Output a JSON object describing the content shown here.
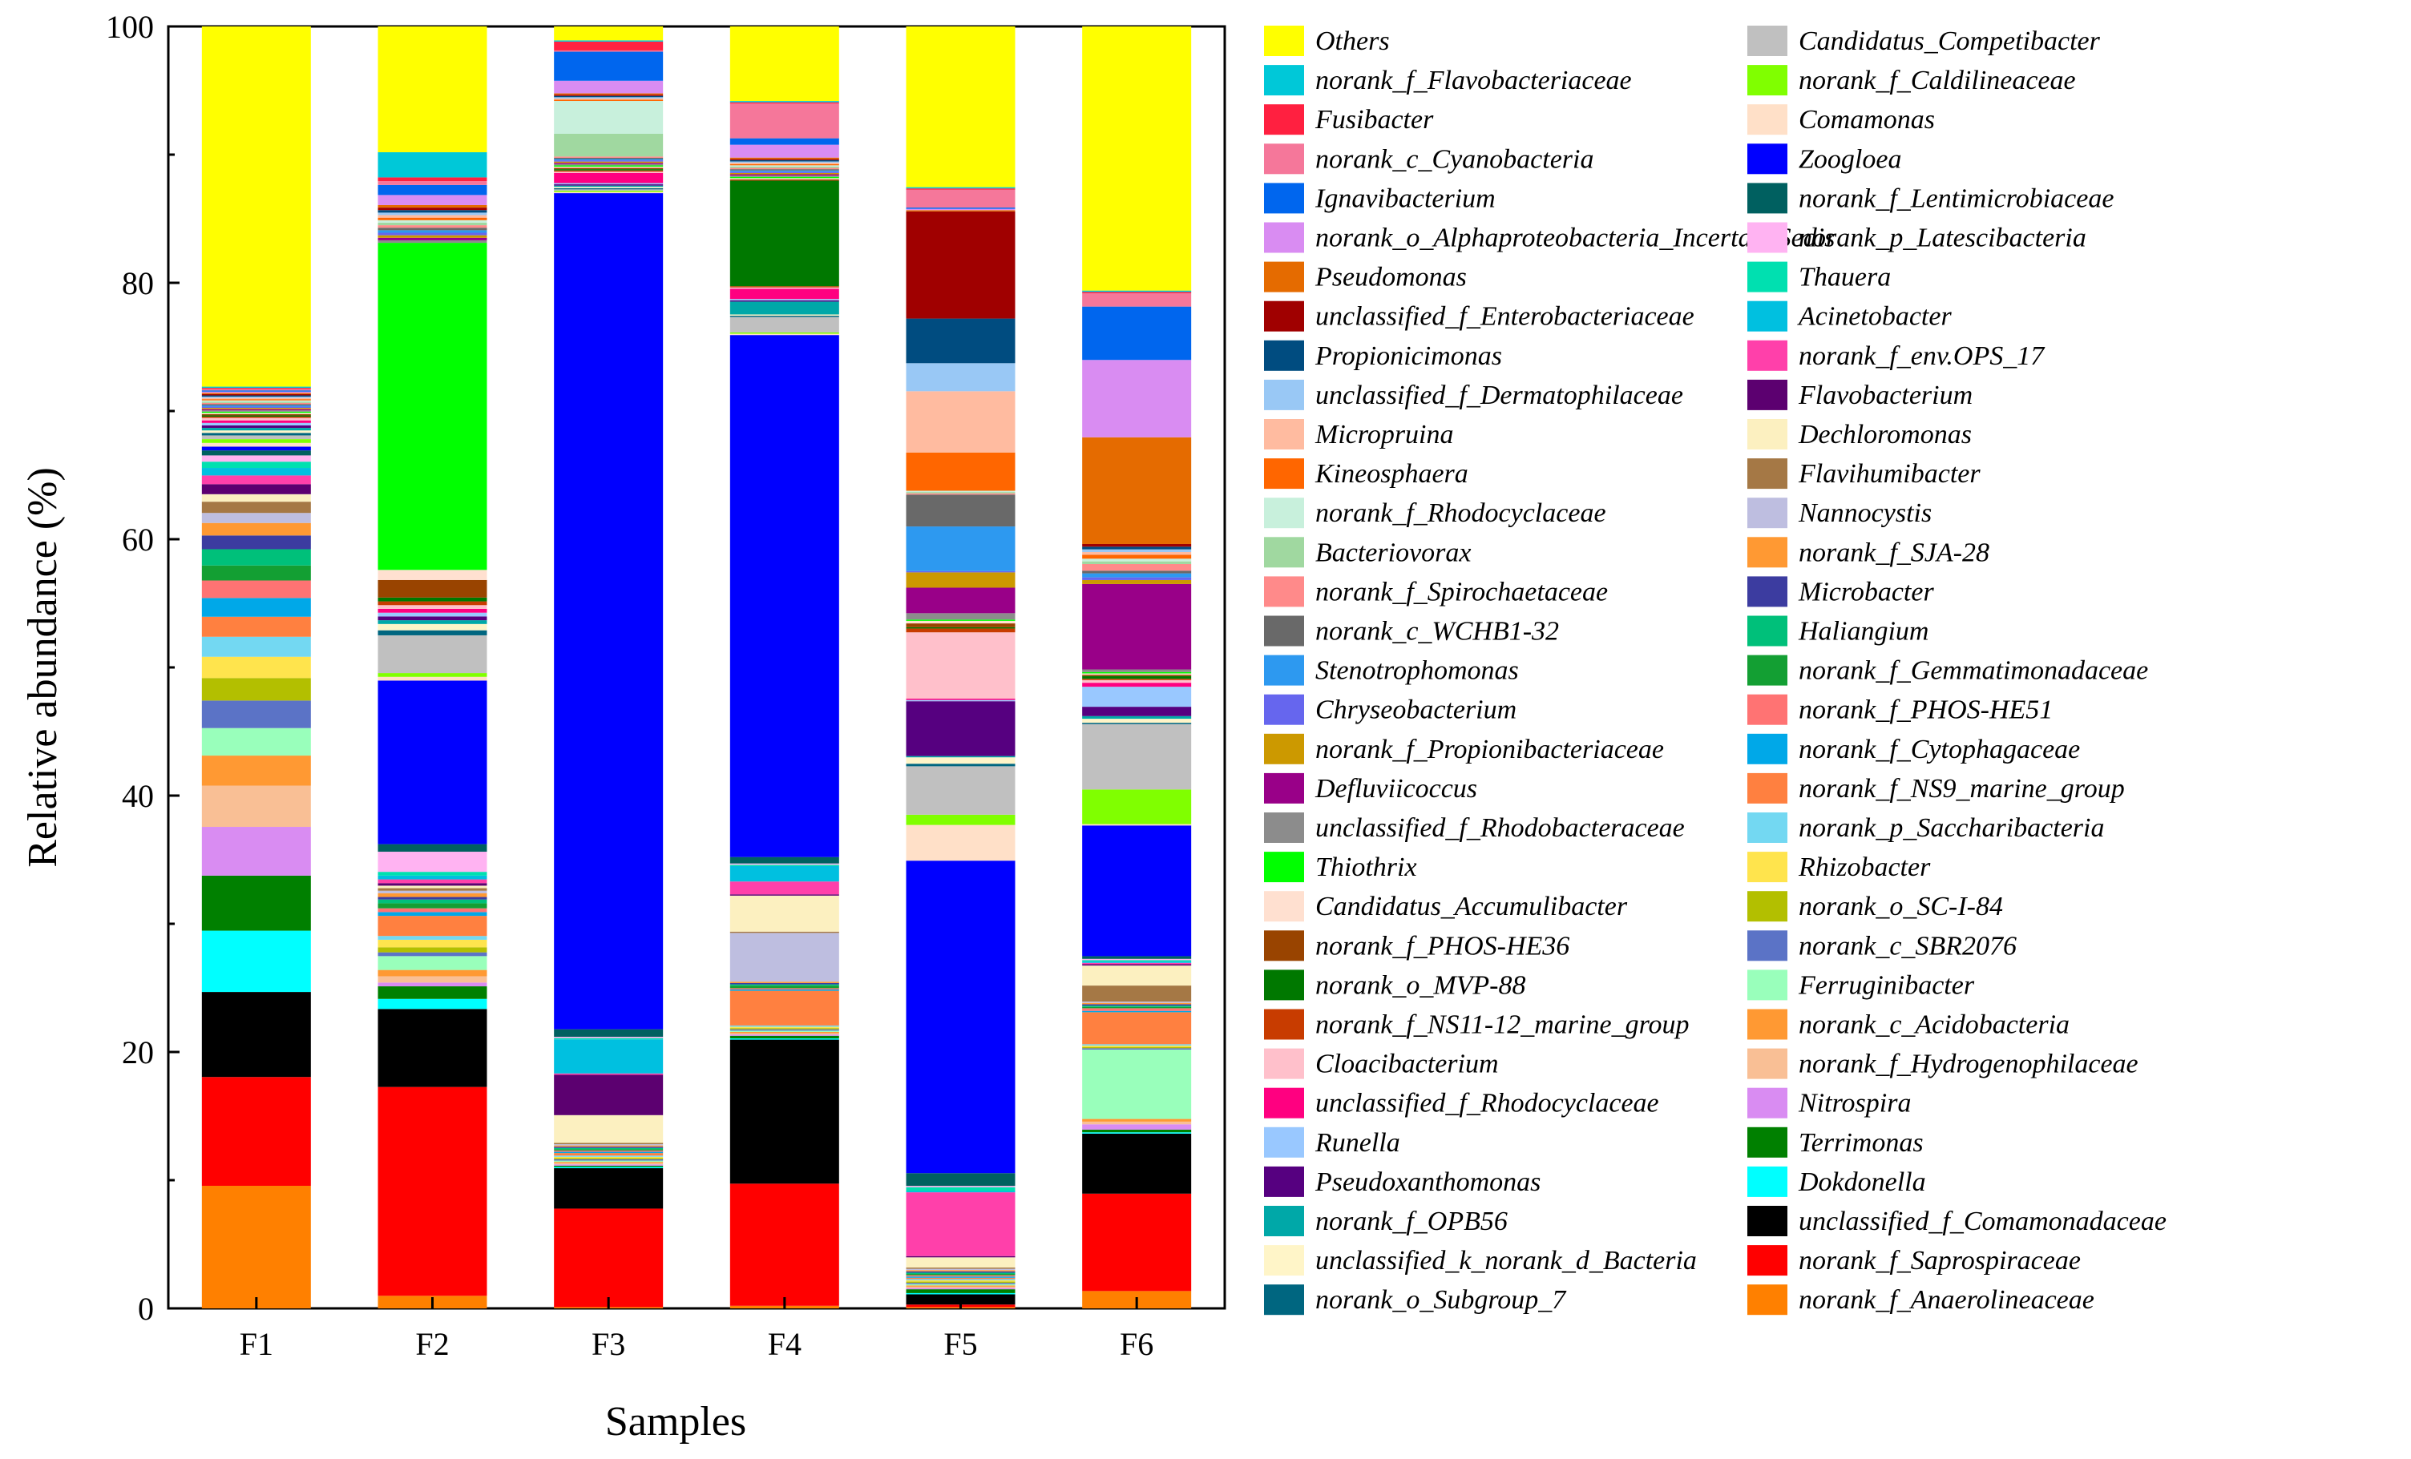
{
  "chart_data": {
    "type": "bar",
    "stacked": true,
    "title": "",
    "xlabel": "Samples",
    "ylabel": "Relative abundance (%)",
    "ylim": [
      0,
      100
    ],
    "yticks": [
      "0",
      "20",
      "40",
      "60",
      "80",
      "100"
    ],
    "categories": [
      "F1",
      "F2",
      "F3",
      "F4",
      "F5",
      "F6"
    ],
    "legend_position": "right",
    "series": [
      {
        "name": "norank_f_Anaerolineaceae",
        "color": "#FF8000",
        "values": [
          9.8,
          1.0,
          0.1,
          0.2,
          0.1,
          1.3
        ]
      },
      {
        "name": "norank_f_Saprospiraceae",
        "color": "#FF0000",
        "values": [
          8.7,
          16.6,
          7.8,
          9.5,
          0.2,
          7.3
        ]
      },
      {
        "name": "unclassified_f_Comamonadaceae",
        "color": "#000000",
        "values": [
          6.8,
          6.2,
          3.2,
          11.2,
          0.8,
          4.5
        ]
      },
      {
        "name": "Dokdonella",
        "color": "#00FFFF",
        "values": [
          4.9,
          0.8,
          0.1,
          0.1,
          0.1,
          0.1
        ]
      },
      {
        "name": "Terrimonas",
        "color": "#008000",
        "values": [
          4.4,
          1.0,
          0.1,
          0.2,
          0.3,
          0.2
        ]
      },
      {
        "name": "Nitrospira",
        "color": "#D98CF2",
        "values": [
          3.9,
          0.3,
          0.1,
          0.1,
          0.1,
          0.4
        ]
      },
      {
        "name": "norank_f_Hydrogenophilaceae",
        "color": "#F9BF95",
        "values": [
          3.3,
          0.5,
          0.1,
          0.1,
          0.1,
          0.2
        ]
      },
      {
        "name": "norank_c_Acidobacteria",
        "color": "#FF9933",
        "values": [
          2.4,
          0.5,
          0.1,
          0.1,
          0.1,
          0.2
        ]
      },
      {
        "name": "Ferruginibacter",
        "color": "#99FFBB",
        "values": [
          2.2,
          1.1,
          0.1,
          0.1,
          0.1,
          5.2
        ]
      },
      {
        "name": "norank_c_SBR2076",
        "color": "#5B73C6",
        "values": [
          2.2,
          0.3,
          0.1,
          0.1,
          0.1,
          0.1
        ]
      },
      {
        "name": "norank_o_SC-I-84",
        "color": "#B3BF00",
        "values": [
          1.8,
          0.4,
          0.1,
          0.1,
          0.1,
          0.1
        ]
      },
      {
        "name": "Rhizobacter",
        "color": "#FFE44D",
        "values": [
          1.7,
          0.6,
          0.1,
          0.1,
          0.1,
          0.1
        ]
      },
      {
        "name": "norank_p_Saccharibacteria",
        "color": "#73D8F2",
        "values": [
          1.6,
          0.3,
          0.1,
          0.1,
          0.1,
          0.1
        ]
      },
      {
        "name": "norank_f_NS9_marine_group",
        "color": "#FF8040",
        "values": [
          1.6,
          1.6,
          0.2,
          2.7,
          0.1,
          2.4
        ]
      },
      {
        "name": "norank_f_Cytophagaceae",
        "color": "#00A8E8",
        "values": [
          1.5,
          0.3,
          0.1,
          0.1,
          0.1,
          0.1
        ]
      },
      {
        "name": "norank_f_PHOS-HE51",
        "color": "#FF7373",
        "values": [
          1.4,
          0.3,
          0.1,
          0.1,
          0.1,
          0.2
        ]
      },
      {
        "name": "norank_f_Gemmatimonadaceae",
        "color": "#139F33",
        "values": [
          1.2,
          0.4,
          0.1,
          0.2,
          0.1,
          0.1
        ]
      },
      {
        "name": "Haliangium",
        "color": "#00C07A",
        "values": [
          1.3,
          0.3,
          0.1,
          0.1,
          0.1,
          0.1
        ]
      },
      {
        "name": "Microbacter",
        "color": "#3C3CA0",
        "values": [
          1.1,
          0.2,
          0.1,
          0.1,
          0.1,
          0.1
        ]
      },
      {
        "name": "norank_f_SJA-28",
        "color": "#FF9933",
        "values": [
          1.0,
          0.3,
          0.1,
          0.1,
          0.1,
          0.1
        ]
      },
      {
        "name": "Nannocystis",
        "color": "#BEBEE0",
        "values": [
          0.8,
          0.2,
          0.1,
          3.8,
          0.1,
          0.1
        ]
      },
      {
        "name": "Flavihumibacter",
        "color": "#A57845",
        "values": [
          0.9,
          0.2,
          0.1,
          0.1,
          0.1,
          1.2
        ]
      },
      {
        "name": "Dechloromonas",
        "color": "#FCF0C0",
        "values": [
          0.6,
          0.2,
          2.2,
          2.8,
          0.8,
          1.5
        ]
      },
      {
        "name": "Flavobacterium",
        "color": "#5C0070",
        "values": [
          0.8,
          0.2,
          3.2,
          0.1,
          0.1,
          0.1
        ]
      },
      {
        "name": "norank_f_env.OPS_17",
        "color": "#FF40AA",
        "values": [
          0.7,
          0.3,
          0.1,
          1.0,
          5.0,
          0.1
        ]
      },
      {
        "name": "Acinetobacter",
        "color": "#00C0E0",
        "values": [
          0.6,
          0.3,
          2.7,
          1.2,
          0.1,
          0.1
        ]
      },
      {
        "name": "Thauera",
        "color": "#00E0B0",
        "values": [
          0.5,
          0.3,
          0.1,
          0.1,
          0.3,
          0.1
        ]
      },
      {
        "name": "norank_p_Latescibacteria",
        "color": "#FFB3F2",
        "values": [
          0.5,
          1.6,
          0.1,
          0.1,
          0.1,
          0.1
        ]
      },
      {
        "name": "norank_f_Lentimicrobiaceae",
        "color": "#006060",
        "values": [
          0.4,
          0.6,
          0.6,
          0.5,
          1.0,
          0.2
        ]
      },
      {
        "name": "Zoogloea",
        "color": "#0000FF",
        "values": [
          0.3,
          13.0,
          66.2,
          40.6,
          24.5,
          9.8
        ]
      },
      {
        "name": "Comamonas",
        "color": "#FFE0C8",
        "values": [
          0.3,
          0.3,
          0.1,
          0.1,
          2.8,
          0.1
        ]
      },
      {
        "name": "norank_f_Caldilineaceae",
        "color": "#80FF00",
        "values": [
          0.3,
          0.3,
          0.1,
          0.1,
          0.8,
          2.6
        ]
      },
      {
        "name": "Candidatus_Competibacter",
        "color": "#C0C0C0",
        "values": [
          0.3,
          3.0,
          0.1,
          1.2,
          3.8,
          4.9
        ]
      },
      {
        "name": "norank_o_Subgroup_7",
        "color": "#006680",
        "values": [
          0.2,
          0.4,
          0.1,
          0.1,
          0.2,
          0.1
        ]
      },
      {
        "name": "unclassified_k_norank_d_Bacteria",
        "color": "#FFF5C8",
        "values": [
          0.2,
          0.5,
          0.1,
          0.1,
          0.5,
          0.3
        ]
      },
      {
        "name": "norank_f_OPB56",
        "color": "#00A8A8",
        "values": [
          0.2,
          0.3,
          0.1,
          1.0,
          0.1,
          0.2
        ]
      },
      {
        "name": "Pseudoxanthomonas",
        "color": "#560080",
        "values": [
          0.2,
          0.3,
          0.1,
          0.1,
          4.3,
          0.7
        ]
      },
      {
        "name": "Runella",
        "color": "#99C8FF",
        "values": [
          0.2,
          0.3,
          0.1,
          0.1,
          0.1,
          1.5
        ]
      },
      {
        "name": "unclassified_f_Rhodocyclaceae",
        "color": "#FF0080",
        "values": [
          0.2,
          0.3,
          0.8,
          0.8,
          0.1,
          0.3
        ]
      },
      {
        "name": "Cloacibacterium",
        "color": "#FFC0CB",
        "values": [
          0.2,
          0.3,
          0.1,
          0.1,
          5.2,
          0.2
        ]
      },
      {
        "name": "norank_f_NS11-12_marine_group",
        "color": "#C83C00",
        "values": [
          0.1,
          0.3,
          0.1,
          0.1,
          0.3,
          0.1
        ]
      },
      {
        "name": "norank_o_MVP-88",
        "color": "#007800",
        "values": [
          0.1,
          0.3,
          0.1,
          8.2,
          0.1,
          0.2
        ]
      },
      {
        "name": "norank_f_PHOS-HE36",
        "color": "#994400",
        "values": [
          0.1,
          1.4,
          0.1,
          0.1,
          0.3,
          0.1
        ]
      },
      {
        "name": "Candidatus_Accumulibacter",
        "color": "#FFE0D0",
        "values": [
          0.1,
          0.8,
          0.1,
          0.1,
          0.2,
          0.1
        ]
      },
      {
        "name": "Thiothrix",
        "color": "#00FF00",
        "values": [
          0.1,
          26.0,
          0.1,
          0.1,
          0.1,
          0.1
        ]
      },
      {
        "name": "unclassified_f_Rhodobacteraceae",
        "color": "#8C8C8C",
        "values": [
          0.1,
          0.2,
          0.1,
          0.1,
          0.5,
          0.2
        ]
      },
      {
        "name": "Defluviicoccus",
        "color": "#990088",
        "values": [
          0.1,
          0.2,
          0.1,
          0.1,
          2.0,
          6.4
        ]
      },
      {
        "name": "norank_f_Propionibacteriaceae",
        "color": "#CC9900",
        "values": [
          0.1,
          0.2,
          0.1,
          0.1,
          1.2,
          0.3
        ]
      },
      {
        "name": "Chryseobacterium",
        "color": "#6666EE",
        "values": [
          0.1,
          0.2,
          0.1,
          0.1,
          0.1,
          0.2
        ]
      },
      {
        "name": "Stenotrophomonas",
        "color": "#2D99F0",
        "values": [
          0.1,
          0.2,
          0.1,
          0.1,
          3.5,
          0.3
        ]
      },
      {
        "name": "norank_c_WCHB1-32",
        "color": "#696969",
        "values": [
          0.1,
          0.2,
          0.1,
          0.1,
          2.5,
          0.2
        ]
      },
      {
        "name": "norank_f_Spirochaetaceae",
        "color": "#FF8A8A",
        "values": [
          0.1,
          0.2,
          0.1,
          0.1,
          0.1,
          0.5
        ]
      },
      {
        "name": "Bacteriovorax",
        "color": "#A0D8A0",
        "values": [
          0.1,
          0.2,
          1.8,
          0.1,
          0.1,
          0.2
        ]
      },
      {
        "name": "norank_f_Rhodocyclaceae",
        "color": "#C8F0DC",
        "values": [
          0.1,
          0.2,
          2.6,
          0.1,
          0.1,
          0.2
        ]
      },
      {
        "name": "Kineosphaera",
        "color": "#FF6600",
        "values": [
          0.1,
          0.2,
          0.1,
          0.1,
          3.0,
          0.3
        ]
      },
      {
        "name": "Micropruina",
        "color": "#FFBBA0",
        "values": [
          0.1,
          0.2,
          0.1,
          0.1,
          4.8,
          0.2
        ]
      },
      {
        "name": "unclassified_f_Dermatophilaceae",
        "color": "#99C8F5",
        "values": [
          0.1,
          0.2,
          0.1,
          0.1,
          2.2,
          0.2
        ]
      },
      {
        "name": "Propionicimonas",
        "color": "#004C80",
        "values": [
          0.1,
          0.2,
          0.1,
          0.1,
          3.5,
          0.2
        ]
      },
      {
        "name": "unclassified_f_Enterobacteriaceae",
        "color": "#A00000",
        "values": [
          0.1,
          0.2,
          0.1,
          0.1,
          8.4,
          0.2
        ]
      },
      {
        "name": "Pseudomonas",
        "color": "#E56B00",
        "values": [
          0.1,
          0.2,
          0.1,
          0.1,
          0.1,
          8.0
        ]
      },
      {
        "name": "norank_o_Alphaproteobacteria_Incertae_Sedis",
        "color": "#D98CF2",
        "values": [
          0.1,
          0.8,
          1.0,
          1.0,
          0.1,
          5.8
        ]
      },
      {
        "name": "Ignavibacterium",
        "color": "#0066EE",
        "values": [
          0.1,
          0.8,
          2.3,
          0.5,
          0.1,
          4.0
        ]
      },
      {
        "name": "norank_c_Cyanobacteria",
        "color": "#F5779A",
        "values": [
          0.1,
          0.3,
          0.1,
          2.7,
          1.4,
          1.0
        ]
      },
      {
        "name": "Fusibacter",
        "color": "#FF2040",
        "values": [
          0.1,
          0.3,
          0.7,
          0.1,
          0.1,
          0.1
        ]
      },
      {
        "name": "norank_f_Flavobacteriaceae",
        "color": "#00C8D8",
        "values": [
          0.1,
          2.0,
          0.1,
          0.1,
          0.1,
          0.1
        ]
      },
      {
        "name": "Others",
        "color": "#FFFF00",
        "values": [
          28.8,
          10.0,
          1.1,
          5.8,
          12.6,
          19.8
        ]
      }
    ]
  }
}
